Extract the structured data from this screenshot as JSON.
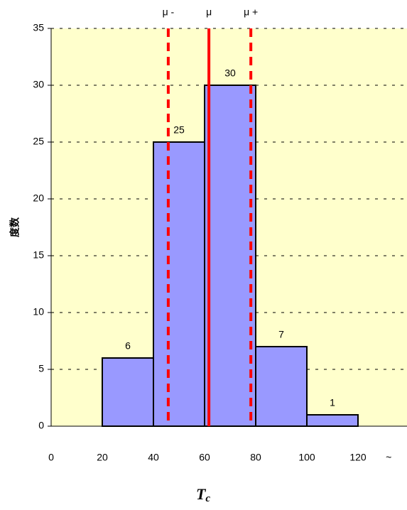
{
  "chart_data": {
    "type": "histogram",
    "bins": [
      20,
      40,
      60,
      80,
      100,
      120
    ],
    "values": [
      6,
      25,
      30,
      7,
      1
    ],
    "color": "#9999ff",
    "edge_color": "#000000",
    "background": "#ffffcc",
    "xlim": [
      0,
      140
    ],
    "ylim": [
      0,
      35
    ],
    "xticks": [
      0,
      20,
      40,
      60,
      80,
      100,
      120,
      {
        "value": 132,
        "label": "~"
      }
    ],
    "yticks": [
      0,
      5,
      10,
      15,
      20,
      25,
      30,
      35
    ],
    "grid": true,
    "ylabel": "度数",
    "xlabel": "T",
    "xlabel_sub": "c",
    "vlines": [
      {
        "value": 45.8,
        "label": "μ -",
        "style": "dashed",
        "color": "#ff0000"
      },
      {
        "value": 61.7,
        "label": "μ",
        "style": "solid",
        "color": "#ff0000"
      },
      {
        "value": 78.1,
        "label": "μ +",
        "style": "dashed",
        "color": "#ff0000"
      }
    ]
  }
}
